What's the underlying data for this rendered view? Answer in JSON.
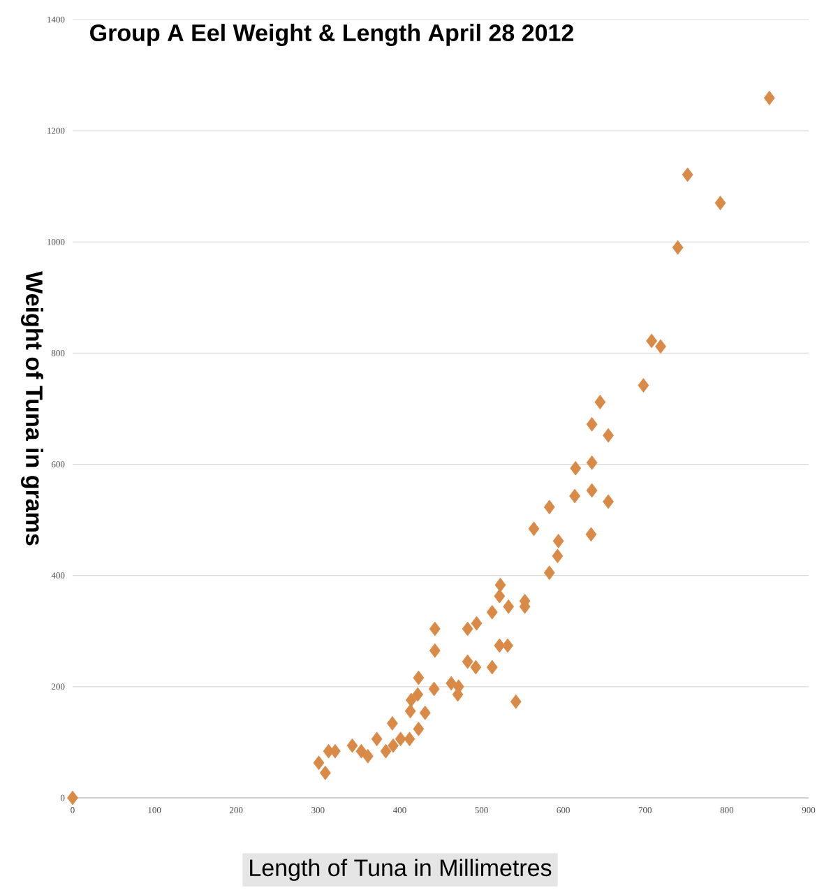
{
  "chart_data": {
    "type": "scatter",
    "title": "Group A Eel Weight & Length April 28 2012",
    "xlabel": "Length  of  Tuna  in Millimetres",
    "ylabel": "Weight of Tuna in grams",
    "x": [
      0,
      301,
      309,
      313,
      321,
      342,
      353,
      361,
      372,
      383,
      391,
      392,
      401,
      412,
      413,
      414,
      423,
      422,
      423,
      431,
      442,
      443,
      443,
      463,
      471,
      472,
      483,
      483,
      493,
      494,
      513,
      513,
      522,
      522,
      523,
      532,
      533,
      542,
      553,
      553,
      564,
      583,
      583,
      593,
      594,
      614,
      615,
      634,
      635,
      635,
      635,
      645,
      655,
      655,
      698,
      708,
      719,
      740,
      752,
      792,
      852
    ],
    "series": [
      {
        "color": "#d98a47",
        "values": [
          0,
          63,
          45,
          84,
          84,
          94,
          84,
          75,
          106,
          84,
          134,
          94,
          106,
          106,
          156,
          176,
          124,
          186,
          216,
          153,
          196,
          265,
          304,
          206,
          186,
          200,
          245,
          304,
          235,
          314,
          235,
          334,
          274,
          363,
          383,
          274,
          344,
          173,
          344,
          354,
          484,
          405,
          523,
          435,
          462,
          543,
          593,
          474,
          553,
          603,
          672,
          712,
          533,
          652,
          742,
          822,
          812,
          990,
          1121,
          1070,
          1259
        ]
      }
    ],
    "xlim": [
      0,
      900
    ],
    "xticks": [
      0,
      100,
      200,
      300,
      400,
      500,
      600,
      700,
      800,
      900
    ],
    "ylim": [
      0,
      1400
    ],
    "yticks": [
      0,
      200,
      400,
      600,
      800,
      1000,
      1200,
      1400
    ],
    "grid": "y",
    "marker": "diamond"
  }
}
